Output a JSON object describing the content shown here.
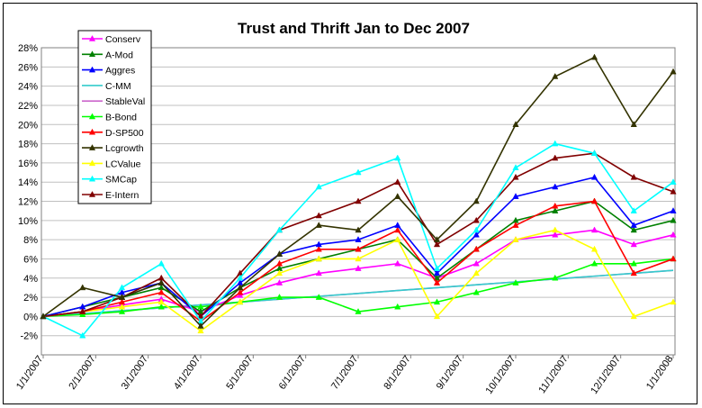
{
  "chart_data": {
    "type": "line",
    "title": "Trust and Thrift  Jan to Dec 2007",
    "xlabel": "",
    "ylabel": "",
    "x_ticks": [
      "1/1/2007",
      "2/1/2007",
      "3/1/2007",
      "4/1/2007",
      "5/1/2007",
      "6/1/2007",
      "7/1/2007",
      "8/1/2007",
      "9/1/2007",
      "10/1/2007",
      "11/1/2007",
      "12/1/2007",
      "1/1/2008"
    ],
    "y_ticks": [
      "-2%",
      "0%",
      "2%",
      "4%",
      "6%",
      "8%",
      "10%",
      "12%",
      "14%",
      "16%",
      "18%",
      "20%",
      "22%",
      "24%",
      "26%",
      "28%"
    ],
    "ylim": [
      -4,
      28
    ],
    "grid": true,
    "legend_position": "top-left",
    "series": [
      {
        "name": "Conserv",
        "color": "#ff00ff",
        "marker": "triangle",
        "values": [
          0,
          0.5,
          1.2,
          1.8,
          0.5,
          2.2,
          3.5,
          4.5,
          5.0,
          5.5,
          4.0,
          5.5,
          8.0,
          8.5,
          9.0,
          7.5,
          8.5
        ]
      },
      {
        "name": "A-Mod",
        "color": "#008000",
        "marker": "triangle",
        "values": [
          0,
          1.0,
          2.0,
          3.0,
          0.5,
          3.0,
          5.0,
          6.0,
          7.0,
          8.0,
          4.0,
          7.0,
          10.0,
          11.0,
          12.0,
          9.0,
          10.0
        ]
      },
      {
        "name": "Aggres",
        "color": "#0000ff",
        "marker": "triangle",
        "values": [
          0,
          1.0,
          2.5,
          3.5,
          0.0,
          3.5,
          6.5,
          7.5,
          8.0,
          9.5,
          4.5,
          8.5,
          12.5,
          13.5,
          14.5,
          9.5,
          11.0
        ]
      },
      {
        "name": "C-MM",
        "color": "#33cccc",
        "marker": "none",
        "values": [
          0,
          0.3,
          0.6,
          0.9,
          1.2,
          1.5,
          1.8,
          2.1,
          2.4,
          2.7,
          3.0,
          3.3,
          3.6,
          3.9,
          4.2,
          4.5,
          4.8
        ]
      },
      {
        "name": "StableVal",
        "color": "#cc66cc",
        "marker": "none",
        "values": [
          0,
          0.3,
          0.6,
          0.9,
          1.2,
          1.5,
          1.8,
          2.1,
          2.4,
          2.7,
          3.0,
          3.3,
          3.6,
          3.9,
          4.2,
          4.5,
          4.8
        ]
      },
      {
        "name": "B-Bond",
        "color": "#00ff00",
        "marker": "triangle",
        "values": [
          0,
          0.2,
          0.5,
          1.0,
          1.0,
          1.5,
          2.0,
          2.0,
          0.5,
          1.0,
          1.5,
          2.5,
          3.5,
          4.0,
          5.5,
          5.5,
          6.0
        ]
      },
      {
        "name": "D-SP500",
        "color": "#ff0000",
        "marker": "triangle",
        "values": [
          0,
          0.5,
          1.5,
          2.5,
          -0.5,
          2.5,
          5.5,
          7.0,
          7.0,
          9.0,
          3.5,
          7.0,
          9.5,
          11.5,
          12.0,
          4.5,
          6.0
        ]
      },
      {
        "name": "Lcgrowth",
        "color": "#333300",
        "marker": "triangle",
        "values": [
          0,
          3.0,
          2.0,
          3.5,
          -1.0,
          3.0,
          6.5,
          9.5,
          9.0,
          12.5,
          8.0,
          12.0,
          20.0,
          25.0,
          27.0,
          20.0,
          25.5
        ]
      },
      {
        "name": "LCValue",
        "color": "#ffff00",
        "marker": "triangle",
        "values": [
          0,
          0.5,
          1.0,
          1.5,
          -1.5,
          1.5,
          4.5,
          6.0,
          6.0,
          8.0,
          0.0,
          4.5,
          8.0,
          9.0,
          7.0,
          0.0,
          1.5
        ]
      },
      {
        "name": "SMCap",
        "color": "#00ffff",
        "marker": "triangle",
        "values": [
          0,
          -2.0,
          3.0,
          5.5,
          -0.5,
          4.0,
          9.0,
          13.5,
          15.0,
          16.5,
          5.0,
          9.0,
          15.5,
          18.0,
          17.0,
          11.0,
          14.0
        ]
      },
      {
        "name": "E-Intern",
        "color": "#800000",
        "marker": "triangle",
        "values": [
          0,
          0.5,
          2.0,
          4.0,
          0.0,
          4.5,
          9.0,
          10.5,
          12.0,
          14.0,
          7.5,
          10.0,
          14.5,
          16.5,
          17.0,
          14.5,
          13.0
        ]
      }
    ]
  }
}
